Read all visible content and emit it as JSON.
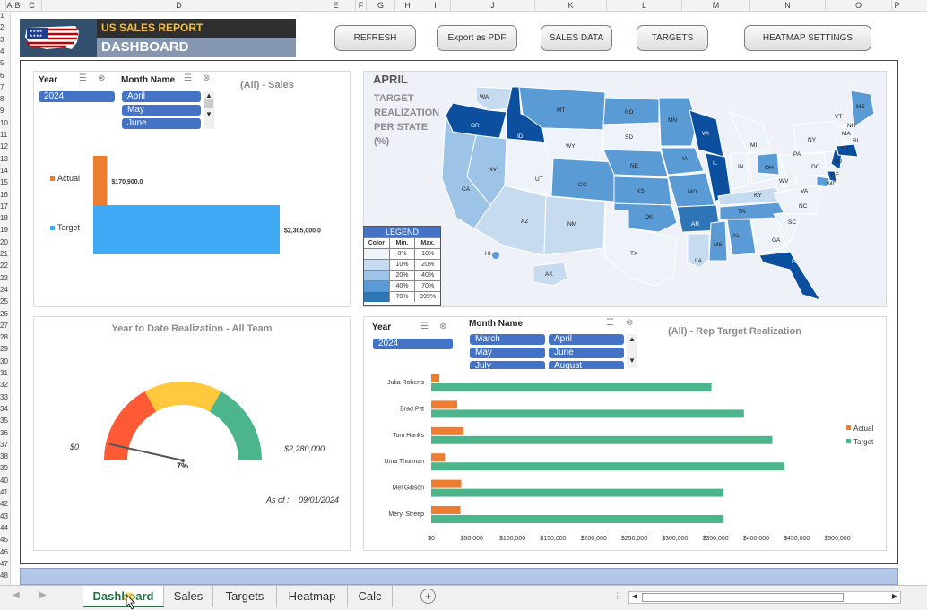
{
  "colors": {
    "accent": "#4472c4",
    "actual": "#ed7d31",
    "target_bar": "#3fa9f5",
    "target_green": "#4cb58c",
    "map_dark": "#0b4f9e",
    "map_mid": "#5a9bd5",
    "map_light": "#9dc3e6",
    "map_pale": "#c6dbef"
  },
  "columns": [
    "A",
    "B",
    "C",
    "D",
    "E",
    "F",
    "G",
    "H",
    "I",
    "J",
    "K",
    "L",
    "M",
    "N",
    "O",
    "P"
  ],
  "rows": [
    "1",
    "2",
    "3",
    "4",
    "5",
    "6",
    "7",
    "8",
    "9",
    "10",
    "11",
    "12",
    "13",
    "14",
    "15",
    "16",
    "17",
    "18",
    "19",
    "20",
    "21",
    "22",
    "23",
    "24",
    "25",
    "26",
    "27",
    "28",
    "29",
    "30",
    "31",
    "32",
    "33",
    "34",
    "35",
    "36",
    "37",
    "38",
    "39",
    "40",
    "41",
    "42",
    "43",
    "44",
    "45",
    "46",
    "47",
    "48"
  ],
  "header": {
    "title_top": "US SALES REPORT",
    "title_bottom": "DASHBOARD"
  },
  "buttons": {
    "refresh": "REFRESH",
    "export": "Export as PDF",
    "sales_data": "SALES DATA",
    "targets": "TARGETS",
    "heatmap": "HEATMAP SETTINGS"
  },
  "sales_panel": {
    "year_label": "Year",
    "year_value": "2024",
    "month_label": "Month Name",
    "months": [
      "April",
      "May",
      "June"
    ],
    "title": "(All) - Sales"
  },
  "map_panel": {
    "month": "APRIL",
    "caption_lines": [
      "TARGET",
      "REALIZATION",
      "PER STATE",
      "(%)"
    ],
    "legend": {
      "title": "LEGEND",
      "headers": [
        "Color",
        "Min.",
        "Max."
      ],
      "rows": [
        {
          "color": "#eef3fa",
          "min": "0%",
          "max": "10%"
        },
        {
          "color": "#c6dbef",
          "min": "10%",
          "max": "20%"
        },
        {
          "color": "#9dc3e6",
          "min": "20%",
          "max": "40%"
        },
        {
          "color": "#5a9bd5",
          "min": "40%",
          "max": "70%"
        },
        {
          "color": "#2e75b6",
          "min": "70%",
          "max": "999%"
        }
      ]
    },
    "state_labels": [
      "WA",
      "OR",
      "ID",
      "MT",
      "ND",
      "MN",
      "WI",
      "MI",
      "ME",
      "VT",
      "NH",
      "MA",
      "RI",
      "CT",
      "NY",
      "PA",
      "NJ",
      "DE",
      "MD",
      "SD",
      "WY",
      "NE",
      "IA",
      "IL",
      "IN",
      "OH",
      "WV",
      "VA",
      "NV",
      "UT",
      "CO",
      "KS",
      "MO",
      "KY",
      "CA",
      "AZ",
      "NM",
      "OK",
      "AR",
      "TN",
      "NC",
      "SC",
      "TX",
      "LA",
      "MS",
      "AL",
      "GA",
      "FL",
      "AK",
      "HI",
      "DC"
    ]
  },
  "gauge_panel": {
    "title": "Year to Date Realization - All Team",
    "min_label": "$0",
    "max_label": "$2,280,000",
    "value_label": "7%",
    "asof_label": "As of :",
    "asof_value": "09/01/2024"
  },
  "rep_panel": {
    "year_label": "Year",
    "year_value": "2024",
    "month_label": "Month Name",
    "months": [
      "March",
      "April",
      "May",
      "June",
      "July",
      "August"
    ],
    "title": "(All) - Rep Target Realization"
  },
  "tabs": [
    "Dashboard",
    "Sales",
    "Targets",
    "Heatmap",
    "Calc"
  ],
  "chart_data": [
    {
      "type": "bar",
      "title": "(All) - Sales",
      "categories": [
        "Actual",
        "Target"
      ],
      "values": [
        170900,
        2305000
      ],
      "data_labels": [
        "$170,900.0",
        "$2,305,000.0"
      ],
      "legend": [
        "Actual",
        "Target"
      ]
    },
    {
      "type": "bar",
      "title": "(All) - Rep Target Realization",
      "categories": [
        "Julia Roberts",
        "Brad Pitt",
        "Tom Hanks",
        "Uma Thurman",
        "Mel Gibson",
        "Meryl Streep"
      ],
      "series": [
        {
          "name": "Actual",
          "values": [
            10000,
            32000,
            40000,
            17000,
            37000,
            36000
          ]
        },
        {
          "name": "Target",
          "values": [
            345000,
            385000,
            420000,
            435000,
            360000,
            360000
          ]
        }
      ],
      "xlim": [
        0,
        500000
      ],
      "x_ticks": [
        "$0",
        "$50,000",
        "$100,000",
        "$150,000",
        "$200,000",
        "$250,000",
        "$300,000",
        "$350,000",
        "$400,000",
        "$450,000",
        "$500,000"
      ],
      "legend": [
        "Actual",
        "Target"
      ],
      "legend_position": "right"
    },
    {
      "type": "gauge",
      "title": "Year to Date Realization - All Team",
      "value_percent": 7,
      "min": "$0",
      "max": "$2,280,000"
    }
  ]
}
